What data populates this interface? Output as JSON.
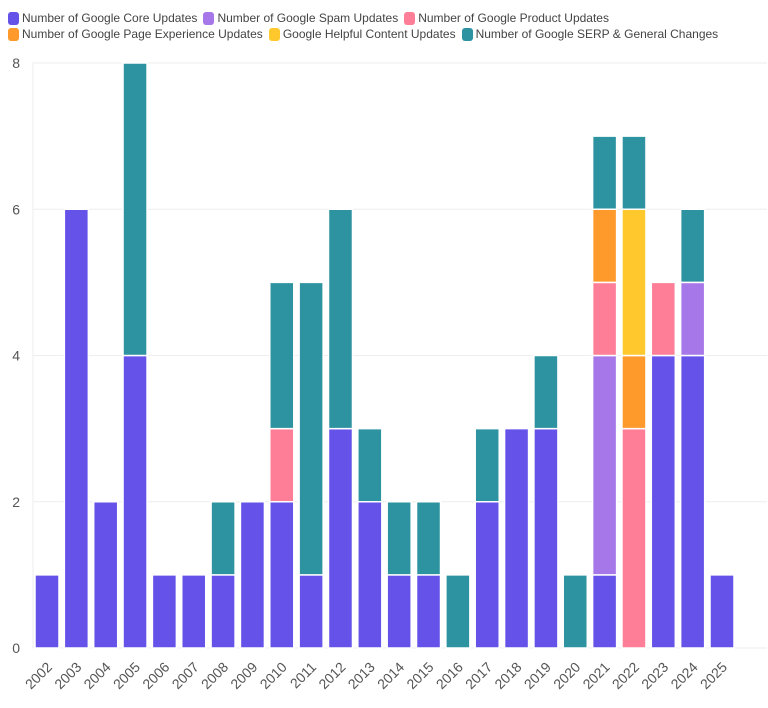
{
  "chart_data": {
    "type": "bar",
    "stacked": true,
    "title": "",
    "xlabel": "",
    "ylabel": "",
    "ylim": [
      0,
      8
    ],
    "yticks": [
      0,
      2,
      4,
      6,
      8
    ],
    "grid": true,
    "legend_position": "top",
    "categories": [
      "2002",
      "2003",
      "2004",
      "2005",
      "2006",
      "2007",
      "2008",
      "2009",
      "2010",
      "2011",
      "2012",
      "2013",
      "2014",
      "2015",
      "2016",
      "2017",
      "2018",
      "2019",
      "2020",
      "2021",
      "2022",
      "2023",
      "2024",
      "2025"
    ],
    "series": [
      {
        "name": "Number of Google Core Updates",
        "color": "#6452e9",
        "values": [
          1,
          6,
          2,
          4,
          1,
          1,
          1,
          2,
          2,
          1,
          3,
          2,
          1,
          1,
          0,
          2,
          3,
          3,
          0,
          1,
          0,
          4,
          4,
          1
        ]
      },
      {
        "name": "Number of Google Spam Updates",
        "color": "#a677e8",
        "values": [
          0,
          0,
          0,
          0,
          0,
          0,
          0,
          0,
          0,
          0,
          0,
          0,
          0,
          0,
          0,
          0,
          0,
          0,
          0,
          3,
          0,
          0,
          1,
          0
        ]
      },
      {
        "name": "Number of Google Product Updates",
        "color": "#fe7d97",
        "values": [
          0,
          0,
          0,
          0,
          0,
          0,
          0,
          0,
          1,
          0,
          0,
          0,
          0,
          0,
          0,
          0,
          0,
          0,
          0,
          1,
          3,
          1,
          0,
          0
        ]
      },
      {
        "name": "Number of Google Page Experience Updates",
        "color": "#fe9a2c",
        "values": [
          0,
          0,
          0,
          0,
          0,
          0,
          0,
          0,
          0,
          0,
          0,
          0,
          0,
          0,
          0,
          0,
          0,
          0,
          0,
          1,
          1,
          0,
          0,
          0
        ]
      },
      {
        "name": "Google Helpful Content Updates",
        "color": "#ffc92d",
        "values": [
          0,
          0,
          0,
          0,
          0,
          0,
          0,
          0,
          0,
          0,
          0,
          0,
          0,
          0,
          0,
          0,
          0,
          0,
          0,
          0,
          2,
          0,
          0,
          0
        ]
      },
      {
        "name": "Number of Google SERP & General Changes",
        "color": "#2e93a0",
        "values": [
          0,
          0,
          0,
          4,
          0,
          0,
          1,
          0,
          2,
          4,
          3,
          1,
          1,
          1,
          1,
          1,
          0,
          1,
          1,
          1,
          1,
          0,
          1,
          0
        ]
      }
    ]
  },
  "legend": {
    "rows": [
      [
        0,
        1,
        2
      ],
      [
        3,
        4,
        5
      ]
    ]
  }
}
